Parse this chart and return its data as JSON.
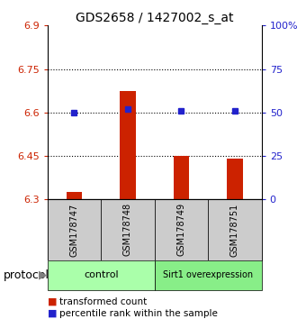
{
  "title": "GDS2658 / 1427002_s_at",
  "samples": [
    "GSM178747",
    "GSM178748",
    "GSM178749",
    "GSM178751"
  ],
  "bar_values": [
    6.325,
    6.675,
    6.45,
    6.44
  ],
  "dot_values": [
    50,
    52,
    51,
    51
  ],
  "bar_color": "#cc2200",
  "dot_color": "#2222cc",
  "ylim_left": [
    6.3,
    6.9
  ],
  "ylim_right": [
    0,
    100
  ],
  "yticks_left": [
    6.3,
    6.45,
    6.6,
    6.75,
    6.9
  ],
  "ytick_labels_left": [
    "6.3",
    "6.45",
    "6.6",
    "6.75",
    "6.9"
  ],
  "yticks_right": [
    0,
    25,
    50,
    75,
    100
  ],
  "ytick_labels_right": [
    "0",
    "25",
    "50",
    "75",
    "100%"
  ],
  "hlines": [
    6.45,
    6.6,
    6.75
  ],
  "groups": [
    {
      "label": "control",
      "indices": [
        0,
        1
      ],
      "color": "#aaffaa"
    },
    {
      "label": "Sirt1 overexpression",
      "indices": [
        2,
        3
      ],
      "color": "#88ee88"
    }
  ],
  "protocol_label": "protocol",
  "legend_bar_label": "transformed count",
  "legend_dot_label": "percentile rank within the sample",
  "bar_bottom": 6.3,
  "plot_bg_color": "#ffffff",
  "sample_box_color": "#cccccc"
}
